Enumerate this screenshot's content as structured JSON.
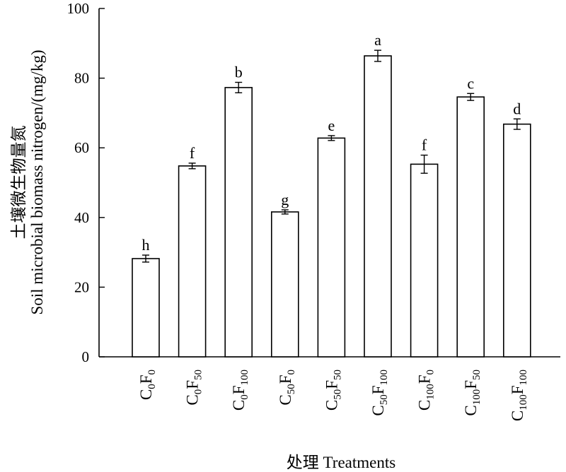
{
  "chart_data": {
    "type": "bar",
    "categories": [
      {
        "C": "0",
        "F": "0"
      },
      {
        "C": "0",
        "F": "50"
      },
      {
        "C": "0",
        "F": "100"
      },
      {
        "C": "50",
        "F": "0"
      },
      {
        "C": "50",
        "F": "50"
      },
      {
        "C": "50",
        "F": "100"
      },
      {
        "C": "100",
        "F": "0"
      },
      {
        "C": "100",
        "F": "50"
      },
      {
        "C": "100",
        "F": "100"
      }
    ],
    "values": [
      28.2,
      54.8,
      77.3,
      41.6,
      62.8,
      86.4,
      55.3,
      74.6,
      66.8
    ],
    "errors": [
      1.0,
      0.8,
      1.5,
      0.6,
      0.7,
      1.6,
      2.6,
      1.0,
      1.5
    ],
    "significance_letters": [
      "h",
      "f",
      "b",
      "g",
      "e",
      "a",
      "f",
      "c",
      "d"
    ],
    "ylim": [
      0,
      100
    ],
    "yticks": [
      "0",
      "20",
      "40",
      "60",
      "80",
      "100"
    ],
    "ylabel_cn": "土壤微生物量氮",
    "ylabel_en": "Soil microbial biomass nitrogen/(mg/kg)",
    "xlabel": "处理 Treatments",
    "bar_fill": "#ffffff",
    "bar_stroke": "#000000"
  }
}
